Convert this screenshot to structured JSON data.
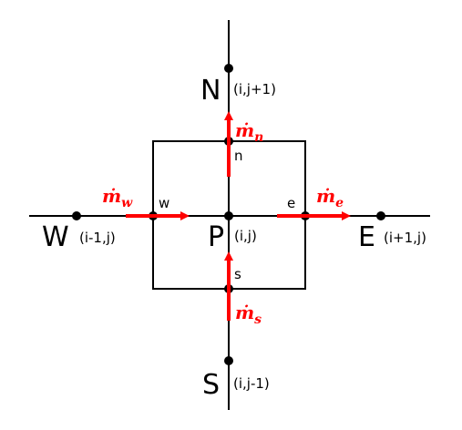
{
  "nodes": {
    "P": {
      "label": "P",
      "index": "(i,j)"
    },
    "N": {
      "label": "N",
      "index": "(i,j+1)"
    },
    "S": {
      "label": "S",
      "index": "(i,j-1)"
    },
    "W": {
      "label": "W",
      "index": "(i-1,j)"
    },
    "E": {
      "label": "E",
      "index": "(i+1,j)"
    }
  },
  "faces": {
    "n": "n",
    "s": "s",
    "w": "w",
    "e": "e"
  },
  "fluxes": {
    "n": {
      "symbol": "ṁ",
      "subscript": "n"
    },
    "s": {
      "symbol": "ṁ",
      "subscript": "s"
    },
    "w": {
      "symbol": "ṁ",
      "subscript": "w"
    },
    "e": {
      "symbol": "ṁ",
      "subscript": "e"
    }
  },
  "colors": {
    "line": "#000000",
    "arrow": "#ff0000"
  }
}
